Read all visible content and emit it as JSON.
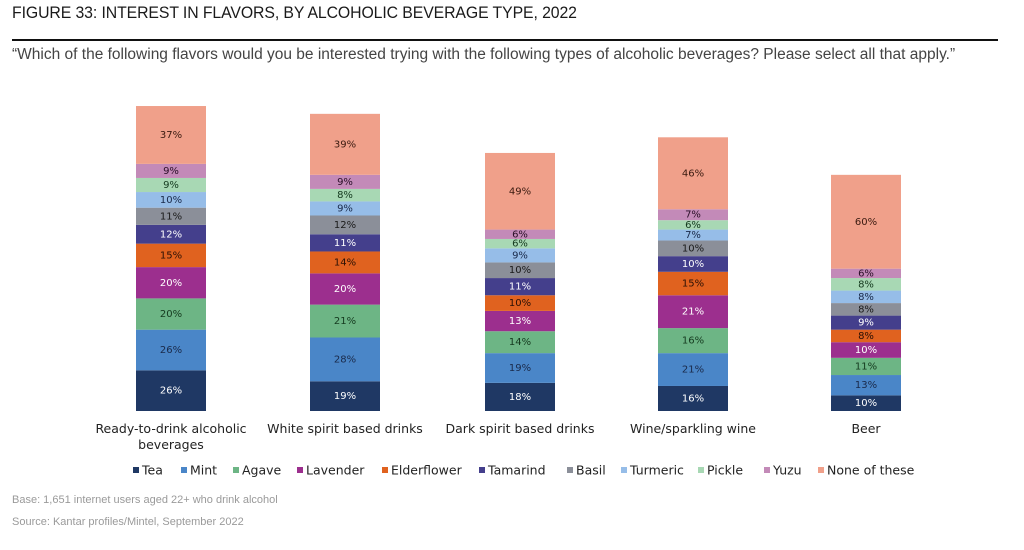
{
  "header": {
    "title": "FIGURE 33: INTEREST IN FLAVORS, BY ALCOHOLIC BEVERAGE TYPE, 2022",
    "question": "“Which of the following flavors would you be interested trying with the following types of alcoholic beverages? Please select all that apply.”"
  },
  "footer": {
    "base": "Base: 1,651 internet users aged 22+ who drink alcohol",
    "source": "Source: Kantar profiles/Mintel, September 2022"
  },
  "chart_data": {
    "type": "bar",
    "stacked": true,
    "title": "FIGURE 33: INTEREST IN FLAVORS, BY ALCOHOLIC BEVERAGE TYPE, 2022",
    "xlabel": "",
    "ylabel": "",
    "unit": "%",
    "grid": false,
    "legend_position": "bottom",
    "categories": [
      [
        "Ready-to-drink alcoholic",
        "beverages"
      ],
      [
        "White spirit based drinks"
      ],
      [
        "Dark spirit based drinks"
      ],
      [
        "Wine/sparkling wine"
      ],
      [
        "Beer"
      ]
    ],
    "series": [
      {
        "name": "Tea",
        "color": "#1f3864",
        "label_color": "#ffffff",
        "values": [
          26,
          19,
          18,
          16,
          10
        ]
      },
      {
        "name": "Mint",
        "color": "#4a86c8",
        "label_color": "#1a2a4a",
        "values": [
          26,
          28,
          19,
          21,
          13
        ]
      },
      {
        "name": "Agave",
        "color": "#6db585",
        "label_color": "#153a1f",
        "values": [
          20,
          21,
          14,
          16,
          11
        ]
      },
      {
        "name": "Lavender",
        "color": "#9c2f8e",
        "label_color": "#ffffff",
        "values": [
          20,
          20,
          13,
          21,
          10
        ]
      },
      {
        "name": "Elderflower",
        "color": "#e0621f",
        "label_color": "#2a1005",
        "values": [
          15,
          14,
          10,
          15,
          8
        ]
      },
      {
        "name": "Tamarind",
        "color": "#443f8c",
        "label_color": "#ffffff",
        "values": [
          12,
          11,
          11,
          10,
          9
        ]
      },
      {
        "name": "Basil",
        "color": "#8b8f99",
        "label_color": "#1a1a1a",
        "values": [
          11,
          12,
          10,
          10,
          8
        ]
      },
      {
        "name": "Turmeric",
        "color": "#96bde8",
        "label_color": "#1a2a4a",
        "values": [
          10,
          9,
          9,
          7,
          8
        ]
      },
      {
        "name": "Pickle",
        "color": "#a8d8b4",
        "label_color": "#153a1f",
        "values": [
          9,
          8,
          6,
          6,
          8
        ]
      },
      {
        "name": "Yuzu",
        "color": "#c38ab8",
        "label_color": "#2a1028",
        "values": [
          9,
          9,
          6,
          7,
          6
        ]
      },
      {
        "name": "None of these",
        "color": "#f0a08a",
        "label_color": "#3a1a10",
        "values": [
          37,
          39,
          49,
          46,
          60
        ]
      }
    ]
  }
}
